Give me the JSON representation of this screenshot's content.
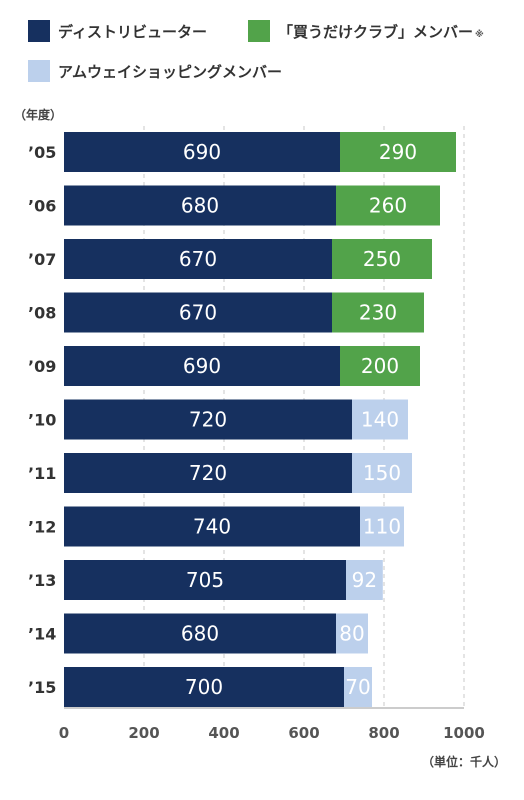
{
  "chart_data": {
    "type": "bar",
    "orientation": "horizontal",
    "stacked": true,
    "categories": [
      "’05",
      "’06",
      "’07",
      "’08",
      "’09",
      "’10",
      "’11",
      "’12",
      "’13",
      "’14",
      "’15"
    ],
    "series": [
      {
        "name": "ディストリビューター",
        "color": "#16305f",
        "values": [
          690,
          680,
          670,
          670,
          690,
          720,
          720,
          740,
          705,
          680,
          700
        ]
      },
      {
        "name": "「買うだけクラブ」メンバー",
        "note": "※",
        "color": "#52a34a",
        "values": [
          290,
          260,
          250,
          230,
          200,
          null,
          null,
          null,
          null,
          null,
          null
        ]
      },
      {
        "name": "アムウェイショッピングメンバー",
        "color": "#bcd0ec",
        "values": [
          null,
          null,
          null,
          null,
          null,
          140,
          150,
          110,
          92,
          80,
          70
        ]
      }
    ],
    "category_axis_title": "（年度）",
    "unit_label": "（単位：千人）",
    "xlim": [
      0,
      1000
    ],
    "xticks": [
      0,
      200,
      400,
      600,
      800,
      1000
    ],
    "grid": true,
    "legend_position": "top"
  }
}
